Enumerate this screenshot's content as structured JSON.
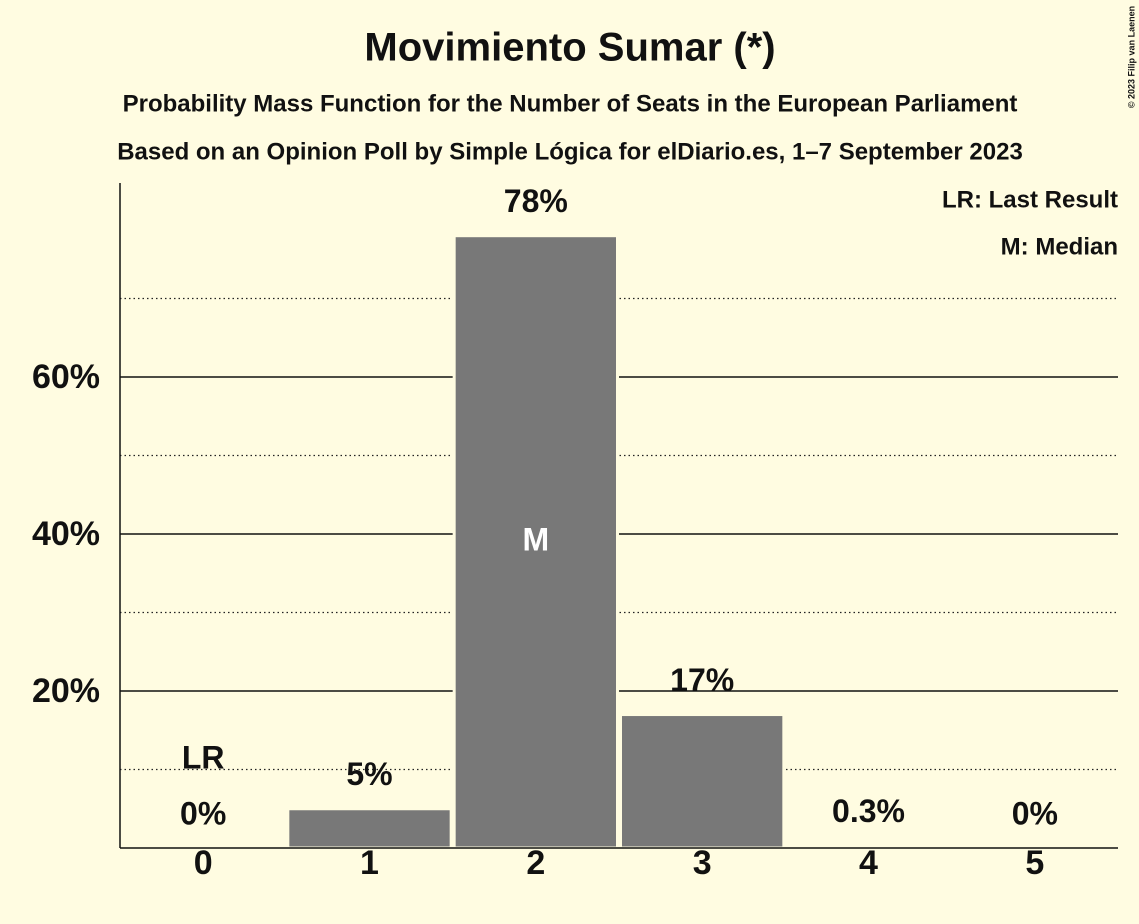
{
  "chart_data": {
    "type": "bar",
    "title": "Movimiento Sumar (*)",
    "subtitles": [
      "Probability Mass Function for the Number of Seats in the European Parliament",
      "Based on an Opinion Poll by Simple Lógica for elDiario.es, 1–7 September 2023"
    ],
    "categories": [
      "0",
      "1",
      "2",
      "3",
      "4",
      "5"
    ],
    "values": [
      0,
      5,
      78,
      17,
      0.3,
      0
    ],
    "value_labels": [
      "0%",
      "5%",
      "78%",
      "17%",
      "0.3%",
      "0%"
    ],
    "color": "#787878",
    "ylim": [
      0,
      85
    ],
    "yticks": [
      {
        "value": 20,
        "label": "20%"
      },
      {
        "value": 40,
        "label": "40%"
      },
      {
        "value": 60,
        "label": "60%"
      }
    ],
    "minor_yticks": [
      10,
      30,
      50,
      70
    ],
    "grid": true,
    "last_result": "0",
    "last_result_label": "LR",
    "median": "2",
    "median_label": "M",
    "legend": [
      "LR: Last Result",
      "M: Median"
    ],
    "copyright": "© 2023 Filip van Laenen"
  }
}
